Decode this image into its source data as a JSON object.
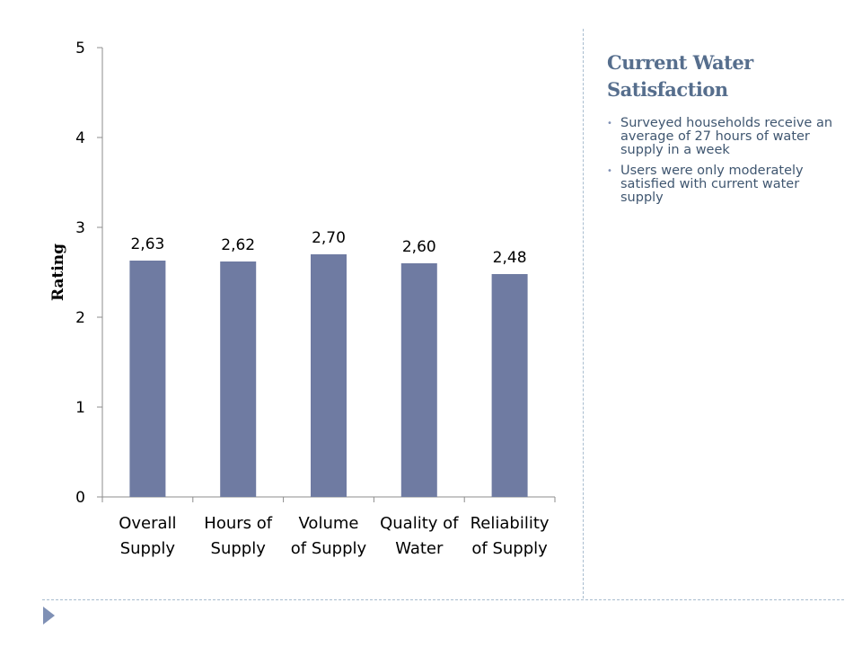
{
  "chart_data": {
    "type": "bar",
    "categories": [
      [
        "Overall",
        "Supply"
      ],
      [
        "Hours of",
        "Supply"
      ],
      [
        "Volume",
        "of Supply"
      ],
      [
        "Quality of",
        "Water"
      ],
      [
        "Reliability",
        "of Supply"
      ]
    ],
    "values": [
      2.63,
      2.62,
      2.7,
      2.6,
      2.48
    ],
    "data_labels": [
      "2,63",
      "2,62",
      "2,70",
      "2,60",
      "2,48"
    ],
    "ylabel": "Rating",
    "ylim": [
      0,
      5
    ],
    "yticks": [
      0,
      1,
      2,
      3,
      4,
      5
    ],
    "grid": false,
    "legend": "none",
    "bar_color": "#6f7ba2"
  },
  "side_panel": {
    "title": "Current Water Satisfaction",
    "bullets": [
      "Surveyed households receive an average of 27 hours of water supply in a week",
      "Users were only moderately satisfied with current water supply"
    ]
  },
  "nav": {
    "icon": "triangle-right-icon",
    "color": "#7f90b5"
  }
}
